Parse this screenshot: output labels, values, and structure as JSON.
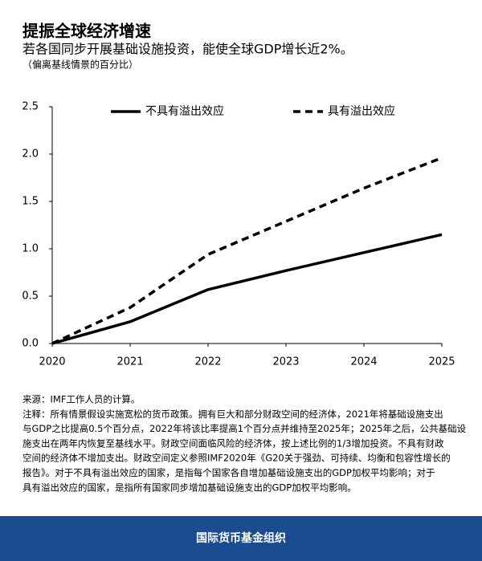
{
  "chart_data": {
    "type": "line",
    "title": "提振全球经济增速",
    "subtitle": "若各国同步开展基础设施投资，能使全球GDP增长近2%。",
    "unit_note": "（偏离基线情景的百分比）",
    "x": [
      2020,
      2021,
      2022,
      2023,
      2024,
      2025
    ],
    "series": [
      {
        "name": "不具有溢出效应",
        "color": "#000000",
        "dash": false,
        "values": [
          0,
          0.23,
          0.57,
          0.77,
          0.96,
          1.15
        ]
      },
      {
        "name": "具有溢出效应",
        "color": "#000000",
        "dash": true,
        "values": [
          0,
          0.38,
          0.94,
          1.29,
          1.64,
          1.96
        ]
      }
    ],
    "xlim": [
      2020,
      2025
    ],
    "xticks": [
      2020,
      2021,
      2022,
      2023,
      2024,
      2025
    ],
    "ylim": [
      0,
      2.5
    ],
    "yticks": [
      {
        "value": 0,
        "label": "0.0"
      },
      0.5,
      {
        "value": 1,
        "label": "1.0"
      },
      1.5,
      {
        "value": 2,
        "label": "2.0"
      },
      2.5
    ],
    "grid": false,
    "legend": "top",
    "notes": [
      "来源：IMF工作人员的计算。",
      "注释：所有情景假设实施宽松的货币政策。拥有巨大和部分财政空间的经济体，2021年将基础设施支出",
      "与GDP之比提高0.5个百分点，2022年将该比率提高1个百分点并维持至2025年；2025年之后，公共基础设",
      "施支出在两年内恢复至基线水平。财政空间面临风险的经济体，按上述比例的1/3增加投资。不具有财政",
      "空间的经济体不增加支出。财政空间定义参照IMF2020年《G20关于强劲、可持续、均衡和包容性增长的",
      "报告》。对于不具有溢出效应的国家，是指每个国家各自增加基础设施支出的GDP加权平均影响；对于",
      "具有溢出效应的国家，是指所有国家同步增加基础设施支出的GDP加权平均影响。"
    ],
    "footer": "国际货币基金组织"
  }
}
